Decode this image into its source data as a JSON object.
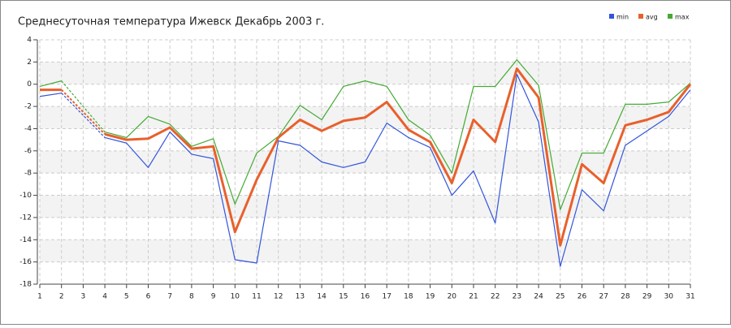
{
  "chart_data": {
    "type": "line",
    "title": "Среднесуточная температура Ижевск  Декабрь 2003 г.",
    "x": [
      1,
      2,
      3,
      4,
      5,
      6,
      7,
      8,
      9,
      10,
      11,
      12,
      13,
      14,
      15,
      16,
      17,
      18,
      19,
      20,
      21,
      22,
      23,
      24,
      25,
      26,
      27,
      28,
      29,
      30,
      31
    ],
    "series": [
      {
        "name": "min",
        "color": "#3355dd",
        "values": [
          -1.1,
          -0.8,
          null,
          -4.8,
          -5.3,
          -7.5,
          -4.3,
          -6.3,
          -6.7,
          -15.8,
          -16.1,
          -5.1,
          -5.5,
          -7.0,
          -7.5,
          -7.0,
          -3.5,
          -4.8,
          -5.7,
          -10.0,
          -7.8,
          -12.5,
          0.9,
          -3.4,
          -16.4,
          -9.5,
          -11.4,
          -5.5,
          -4.2,
          -2.9,
          -0.5
        ]
      },
      {
        "name": "avg",
        "color": "#e8602c",
        "values": [
          -0.5,
          -0.5,
          null,
          -4.5,
          -5.0,
          -4.9,
          -3.9,
          -5.8,
          -5.6,
          -13.3,
          -8.6,
          -4.8,
          -3.2,
          -4.2,
          -3.3,
          -3.0,
          -1.6,
          -4.1,
          -5.2,
          -8.9,
          -3.2,
          -5.2,
          1.4,
          -1.2,
          -14.5,
          -7.2,
          -8.9,
          -3.7,
          -3.2,
          -2.5,
          0.0
        ]
      },
      {
        "name": "max",
        "color": "#44aa33",
        "values": [
          -0.2,
          0.3,
          null,
          -4.3,
          -4.8,
          -2.9,
          -3.6,
          -5.6,
          -4.9,
          -10.8,
          -6.2,
          -4.7,
          -1.9,
          -3.2,
          -0.2,
          0.3,
          -0.2,
          -3.2,
          -4.6,
          -8.0,
          -0.2,
          -0.2,
          2.2,
          -0.1,
          -11.3,
          -6.2,
          -6.2,
          -1.8,
          -1.8,
          -1.6,
          0.1
        ]
      }
    ],
    "xlim": [
      1,
      31
    ],
    "xticks": [
      1,
      2,
      3,
      4,
      5,
      6,
      7,
      8,
      9,
      10,
      11,
      12,
      13,
      14,
      15,
      16,
      17,
      18,
      19,
      20,
      21,
      22,
      23,
      24,
      25,
      26,
      27,
      28,
      29,
      30,
      31
    ],
    "ylim": [
      -18,
      4
    ],
    "yticks": [
      -18,
      -16,
      -14,
      -12,
      -10,
      -8,
      -6,
      -4,
      -2,
      0,
      2,
      4
    ],
    "grid": true,
    "legend": "top-right"
  }
}
